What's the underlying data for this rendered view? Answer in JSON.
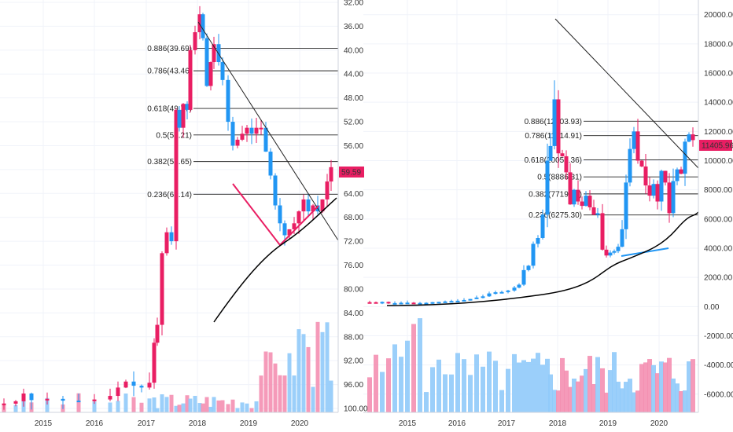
{
  "chart_data": [
    {
      "type": "candlestick",
      "y_axis": "inverted",
      "ylim": [
        100,
        30
      ],
      "y_ticks": [
        "32.00",
        "36.00",
        "40.00",
        "44.00",
        "48.00",
        "52.00",
        "56.00",
        "60.00",
        "64.00",
        "68.00",
        "72.00",
        "76.00",
        "80.00",
        "84.00",
        "88.00",
        "92.00",
        "96.00",
        "100.00"
      ],
      "x_ticks": [
        "2015",
        "2016",
        "2017",
        "2018",
        "2019",
        "2020"
      ],
      "last_price_label": "59.59",
      "fib_levels": [
        {
          "label": "0.886(39.69)",
          "value": 39.69
        },
        {
          "label": "0.786(43.46)",
          "value": 43.46
        },
        {
          "label": "0.618(49.77)",
          "value": 49.77
        },
        {
          "label": "0.5(54.21)",
          "value": 54.21
        },
        {
          "label": "0.382(58.65)",
          "value": 58.65
        },
        {
          "label": "0.236(64.14)",
          "value": 64.14
        }
      ],
      "colors": {
        "up": "#2196f3",
        "down": "#e91e63",
        "volume_up": "#90caf9",
        "volume_down": "#f48fb1"
      }
    },
    {
      "type": "candlestick",
      "ylim": [
        -7000,
        20500
      ],
      "y_ticks": [
        "20000.00",
        "18000.00",
        "16000.00",
        "14000.00",
        "12000.00",
        "10000.00",
        "8000.00",
        "6000.00",
        "4000.00",
        "2000.00",
        "0.00",
        "-2000.00",
        "-4000.00",
        "-6000.00"
      ],
      "x_ticks": [
        "2015",
        "2016",
        "2017",
        "2018",
        "2019",
        "2020"
      ],
      "last_price_label": "11405.96",
      "fib_levels": [
        {
          "label": "0.886(12703.93)",
          "value": 12703.93
        },
        {
          "label": "0.786(11714.91)",
          "value": 11714.91
        },
        {
          "label": "0.618(10053.36)",
          "value": 10053.36
        },
        {
          "label": "0.5(8886.31)",
          "value": 8886.31
        },
        {
          "label": "0.382(7719.27)",
          "value": 7719.27
        },
        {
          "label": "0.236(6275.30)",
          "value": 6275.3
        }
      ],
      "colors": {
        "up": "#2196f3",
        "down": "#e91e63",
        "volume_up": "#90caf9",
        "volume_down": "#f48fb1"
      }
    }
  ]
}
